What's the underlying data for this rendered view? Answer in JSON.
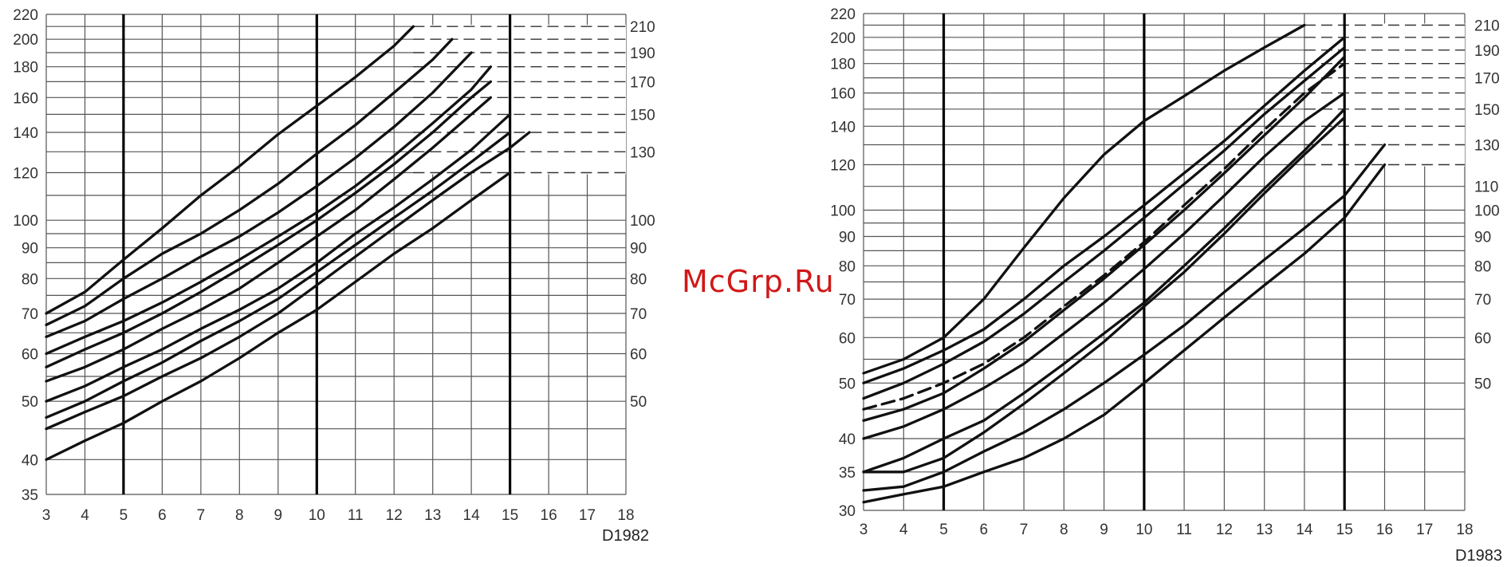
{
  "watermark": "McGrp.Ru",
  "chart_data": [
    {
      "type": "line",
      "code": "D1982",
      "scale": "log-y",
      "xlim": [
        3,
        18
      ],
      "ylim": [
        35,
        220
      ],
      "x_ticks": [
        3,
        4,
        5,
        6,
        7,
        8,
        9,
        10,
        11,
        12,
        13,
        14,
        15,
        16,
        17,
        18
      ],
      "y_ticks_left": [
        35,
        40,
        50,
        60,
        70,
        80,
        90,
        100,
        120,
        140,
        160,
        180,
        200,
        220
      ],
      "y_ticks_right": [
        50,
        60,
        70,
        80,
        90,
        100,
        130,
        150,
        170,
        190,
        210
      ],
      "x_grid": [
        3,
        4,
        5,
        6,
        7,
        8,
        9,
        10,
        11,
        12,
        13,
        14,
        15,
        16,
        17,
        18
      ],
      "y_grid": [
        35,
        40,
        45,
        50,
        55,
        60,
        65,
        70,
        75,
        80,
        85,
        90,
        95,
        100,
        110,
        120,
        130,
        140,
        150,
        160,
        170,
        180,
        190,
        200,
        210,
        220
      ],
      "emph_x": [
        5,
        10,
        15
      ],
      "dash_x": [
        12.5,
        18
      ],
      "dash_y": [
        120,
        130,
        140,
        150,
        160,
        170,
        180,
        190,
        200,
        210
      ],
      "colors": {
        "line": "#111111",
        "grid": "#555555",
        "heavy": "#000000"
      },
      "series": [
        {
          "x": [
            3,
            4,
            5,
            6,
            7,
            8,
            9,
            10,
            11,
            12,
            12.5
          ],
          "y": [
            70,
            76,
            86,
            97,
            110,
            123,
            139,
            155,
            173,
            195,
            210
          ]
        },
        {
          "x": [
            3,
            4,
            5,
            6,
            7,
            8,
            9,
            10,
            11,
            12,
            13,
            13.5
          ],
          "y": [
            67,
            72,
            80,
            88,
            95,
            104,
            115,
            129,
            144,
            163,
            185,
            200
          ]
        },
        {
          "x": [
            3,
            4,
            5,
            6,
            7,
            8,
            9,
            10,
            11,
            12,
            13,
            14
          ],
          "y": [
            64,
            68,
            74,
            80,
            87,
            94,
            103,
            114,
            127,
            143,
            163,
            190
          ]
        },
        {
          "x": [
            3,
            4,
            5,
            6,
            7,
            8,
            9,
            10,
            11,
            12,
            13,
            14,
            14.5
          ],
          "y": [
            60,
            64,
            68,
            73,
            79,
            86,
            94,
            103,
            114,
            128,
            145,
            165,
            180
          ]
        },
        {
          "x": [
            3,
            4,
            5,
            6,
            7,
            8,
            9,
            10,
            11,
            12,
            13,
            14,
            14.5
          ],
          "y": [
            57,
            61,
            65,
            70,
            76,
            83,
            91,
            100,
            111,
            124,
            140,
            160,
            170
          ]
        },
        {
          "x": [
            3,
            4,
            5,
            6,
            7,
            8,
            9,
            10,
            11,
            12,
            13,
            14,
            14.5
          ],
          "y": [
            54,
            57,
            61,
            66,
            71,
            77,
            85,
            94,
            104,
            117,
            132,
            150,
            160
          ]
        },
        {
          "x": [
            3,
            4,
            5,
            6,
            7,
            8,
            9,
            10,
            11,
            12,
            13,
            14,
            15
          ],
          "y": [
            50,
            53,
            57,
            61,
            66,
            71,
            77,
            85,
            95,
            105,
            117,
            131,
            150
          ]
        },
        {
          "x": [
            3,
            4,
            5,
            6,
            7,
            8,
            9,
            10,
            11,
            12,
            13,
            14,
            15
          ],
          "y": [
            47,
            50,
            54,
            58,
            63,
            68,
            74,
            82,
            91,
            101,
            112,
            125,
            140
          ]
        },
        {
          "x": [
            3,
            4,
            5,
            6,
            7,
            8,
            9,
            10,
            11,
            12,
            13,
            14,
            15,
            15.5
          ],
          "y": [
            45,
            48,
            51,
            55,
            59,
            64,
            70,
            78,
            87,
            97,
            108,
            120,
            132,
            140
          ]
        },
        {
          "x": [
            3,
            4,
            5,
            6,
            7,
            8,
            9,
            10,
            11,
            12,
            13,
            14,
            15
          ],
          "y": [
            40,
            43,
            46,
            50,
            54,
            59,
            65,
            71,
            79,
            88,
            97,
            108,
            120
          ]
        }
      ]
    },
    {
      "type": "line",
      "code": "D1983",
      "scale": "log-y",
      "xlim": [
        3,
        18
      ],
      "ylim": [
        30,
        220
      ],
      "x_ticks": [
        3,
        4,
        5,
        6,
        7,
        8,
        9,
        10,
        11,
        12,
        13,
        14,
        15,
        16,
        17,
        18
      ],
      "y_ticks_left": [
        30,
        35,
        40,
        50,
        60,
        70,
        80,
        90,
        100,
        120,
        140,
        160,
        180,
        200,
        220
      ],
      "y_ticks_right": [
        50,
        60,
        70,
        80,
        90,
        100,
        110,
        130,
        150,
        170,
        190,
        210
      ],
      "x_grid": [
        3,
        4,
        5,
        6,
        7,
        8,
        9,
        10,
        11,
        12,
        13,
        14,
        15,
        16,
        17,
        18
      ],
      "y_grid": [
        30,
        35,
        40,
        45,
        50,
        55,
        60,
        65,
        70,
        75,
        80,
        85,
        90,
        95,
        100,
        110,
        120,
        130,
        140,
        150,
        160,
        170,
        180,
        190,
        200,
        210,
        220
      ],
      "emph_x": [
        5,
        10,
        15
      ],
      "dash_x": [
        14,
        18
      ],
      "dash_y": [
        120,
        130,
        140,
        150,
        160,
        170,
        180,
        190,
        200,
        210
      ],
      "colors": {
        "line": "#111111",
        "grid": "#555555",
        "heavy": "#000000"
      },
      "series": [
        {
          "x": [
            3,
            4,
            5,
            6,
            7,
            8,
            9,
            10,
            11,
            12,
            13,
            14
          ],
          "y": [
            52,
            55,
            60,
            70,
            86,
            105,
            125,
            143,
            158,
            175,
            192,
            210
          ]
        },
        {
          "x": [
            3,
            4,
            5,
            6,
            7,
            8,
            9,
            10,
            11,
            12,
            13,
            14,
            15
          ],
          "y": [
            50,
            53,
            57,
            62,
            70,
            80,
            90,
            102,
            116,
            132,
            152,
            175,
            200
          ]
        },
        {
          "x": [
            3,
            4,
            5,
            6,
            7,
            8,
            9,
            10,
            11,
            12,
            13,
            14,
            15
          ],
          "y": [
            47,
            50,
            54,
            59,
            66,
            75,
            85,
            97,
            111,
            127,
            147,
            168,
            192
          ]
        },
        {
          "x": [
            3,
            4,
            5,
            6,
            7,
            8,
            9,
            10,
            11,
            12,
            13,
            14,
            15
          ],
          "y": [
            45,
            47,
            50,
            54,
            60,
            68,
            77,
            88,
            102,
            118,
            138,
            160,
            180
          ],
          "dashed": true
        },
        {
          "x": [
            3,
            4,
            5,
            6,
            7,
            8,
            9,
            10,
            11,
            12,
            13,
            14,
            15
          ],
          "y": [
            43,
            45,
            48,
            53,
            59,
            67,
            76,
            87,
            100,
            116,
            135,
            157,
            185
          ]
        },
        {
          "x": [
            3,
            4,
            5,
            6,
            7,
            8,
            9,
            10,
            11,
            12,
            13,
            14,
            15
          ],
          "y": [
            40,
            42,
            45,
            49,
            54,
            61,
            69,
            79,
            91,
            106,
            124,
            143,
            160
          ]
        },
        {
          "x": [
            3,
            4,
            5,
            6,
            7,
            8,
            9,
            10,
            11,
            12,
            13,
            14,
            15
          ],
          "y": [
            35,
            37,
            40,
            43,
            48,
            54,
            61,
            69,
            80,
            93,
            109,
            127,
            150
          ]
        },
        {
          "x": [
            3,
            4,
            5,
            6,
            7,
            8,
            9,
            10,
            11,
            12,
            13,
            14,
            15
          ],
          "y": [
            35,
            35,
            37,
            41,
            46,
            52,
            59,
            68,
            78,
            91,
            107,
            125,
            145
          ]
        },
        {
          "x": [
            3,
            4,
            5,
            6,
            7,
            8,
            9,
            10,
            11,
            12,
            13,
            14,
            15,
            16
          ],
          "y": [
            32.5,
            33,
            35,
            38,
            41,
            45,
            50,
            56,
            63,
            72,
            82,
            93,
            106,
            130
          ]
        },
        {
          "x": [
            3,
            4,
            5,
            6,
            7,
            8,
            9,
            10,
            11,
            12,
            13,
            14,
            15,
            16
          ],
          "y": [
            31,
            32,
            33,
            35,
            37,
            40,
            44,
            50,
            57,
            65,
            74,
            84,
            97,
            120
          ]
        }
      ]
    }
  ]
}
